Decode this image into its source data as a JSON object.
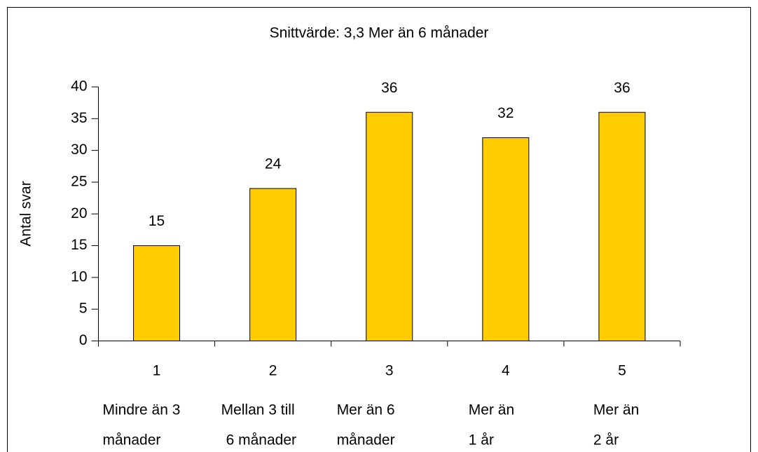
{
  "chart_data": {
    "type": "bar",
    "title": "Snittvärde: 3,3 Mer än 6 månader",
    "y_label": "Antal svar",
    "categories": [
      "1",
      "2",
      "3",
      "4",
      "5"
    ],
    "category_descriptions": [
      [
        "Mindre än 3",
        "månader"
      ],
      [
        "Mellan 3 till",
        "6 månader"
      ],
      [
        "Mer än 6",
        "månader"
      ],
      [
        "Mer än",
        "1 år"
      ],
      [
        "Mer än",
        "2 år"
      ]
    ],
    "values": [
      15,
      24,
      36,
      32,
      36
    ],
    "color": "#ffcc00",
    "ylim": [
      0,
      40
    ],
    "yticks": [
      0,
      5,
      10,
      15,
      20,
      25,
      30,
      35,
      40
    ],
    "grid": false
  }
}
